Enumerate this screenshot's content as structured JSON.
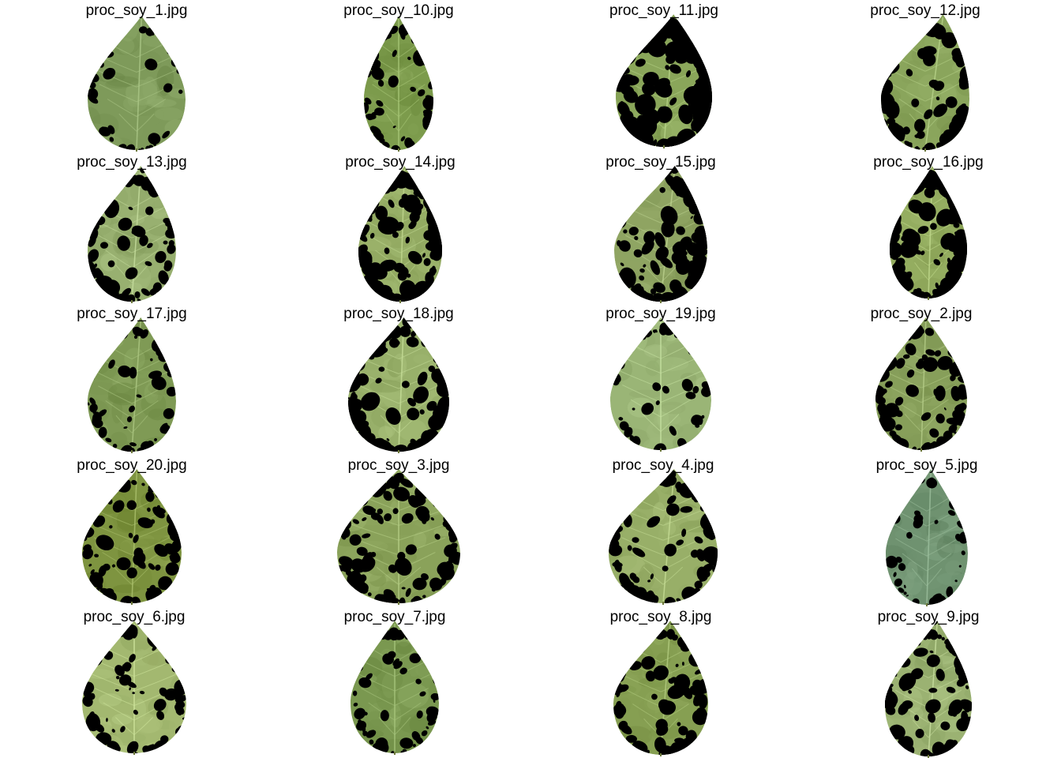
{
  "panels": [
    {
      "title": "proc_soy_1.jpg",
      "leaf_color": "#7e9a5a",
      "dark_fraction": 0.08
    },
    {
      "title": "proc_soy_10.jpg",
      "leaf_color": "#7c9b4c",
      "dark_fraction": 0.18
    },
    {
      "title": "proc_soy_11.jpg",
      "leaf_color": "#8aa65a",
      "dark_fraction": 0.62
    },
    {
      "title": "proc_soy_12.jpg",
      "leaf_color": "#8aa55c",
      "dark_fraction": 0.38
    },
    {
      "title": "proc_soy_13.jpg",
      "leaf_color": "#98b070",
      "dark_fraction": 0.3
    },
    {
      "title": "proc_soy_14.jpg",
      "leaf_color": "#93aa62",
      "dark_fraction": 0.45
    },
    {
      "title": "proc_soy_15.jpg",
      "leaf_color": "#8fa462",
      "dark_fraction": 0.42
    },
    {
      "title": "proc_soy_16.jpg",
      "leaf_color": "#94ad60",
      "dark_fraction": 0.48
    },
    {
      "title": "proc_soy_17.jpg",
      "leaf_color": "#7f9a55",
      "dark_fraction": 0.2
    },
    {
      "title": "proc_soy_18.jpg",
      "leaf_color": "#98b06a",
      "dark_fraction": 0.42
    },
    {
      "title": "proc_soy_19.jpg",
      "leaf_color": "#9ab576",
      "dark_fraction": 0.14
    },
    {
      "title": "proc_soy_2.jpg",
      "leaf_color": "#879f5a",
      "dark_fraction": 0.35
    },
    {
      "title": "proc_soy_20.jpg",
      "leaf_color": "#7e9440",
      "dark_fraction": 0.3
    },
    {
      "title": "proc_soy_3.jpg",
      "leaf_color": "#8aa25a",
      "dark_fraction": 0.38
    },
    {
      "title": "proc_soy_4.jpg",
      "leaf_color": "#98af68",
      "dark_fraction": 0.36
    },
    {
      "title": "proc_soy_5.jpg",
      "leaf_color": "#6f9270",
      "dark_fraction": 0.12
    },
    {
      "title": "proc_soy_6.jpg",
      "leaf_color": "#a3b870",
      "dark_fraction": 0.26
    },
    {
      "title": "proc_soy_7.jpg",
      "leaf_color": "#7a9850",
      "dark_fraction": 0.18
    },
    {
      "title": "proc_soy_8.jpg",
      "leaf_color": "#869f52",
      "dark_fraction": 0.34
    },
    {
      "title": "proc_soy_9.jpg",
      "leaf_color": "#9bb272",
      "dark_fraction": 0.32
    }
  ]
}
